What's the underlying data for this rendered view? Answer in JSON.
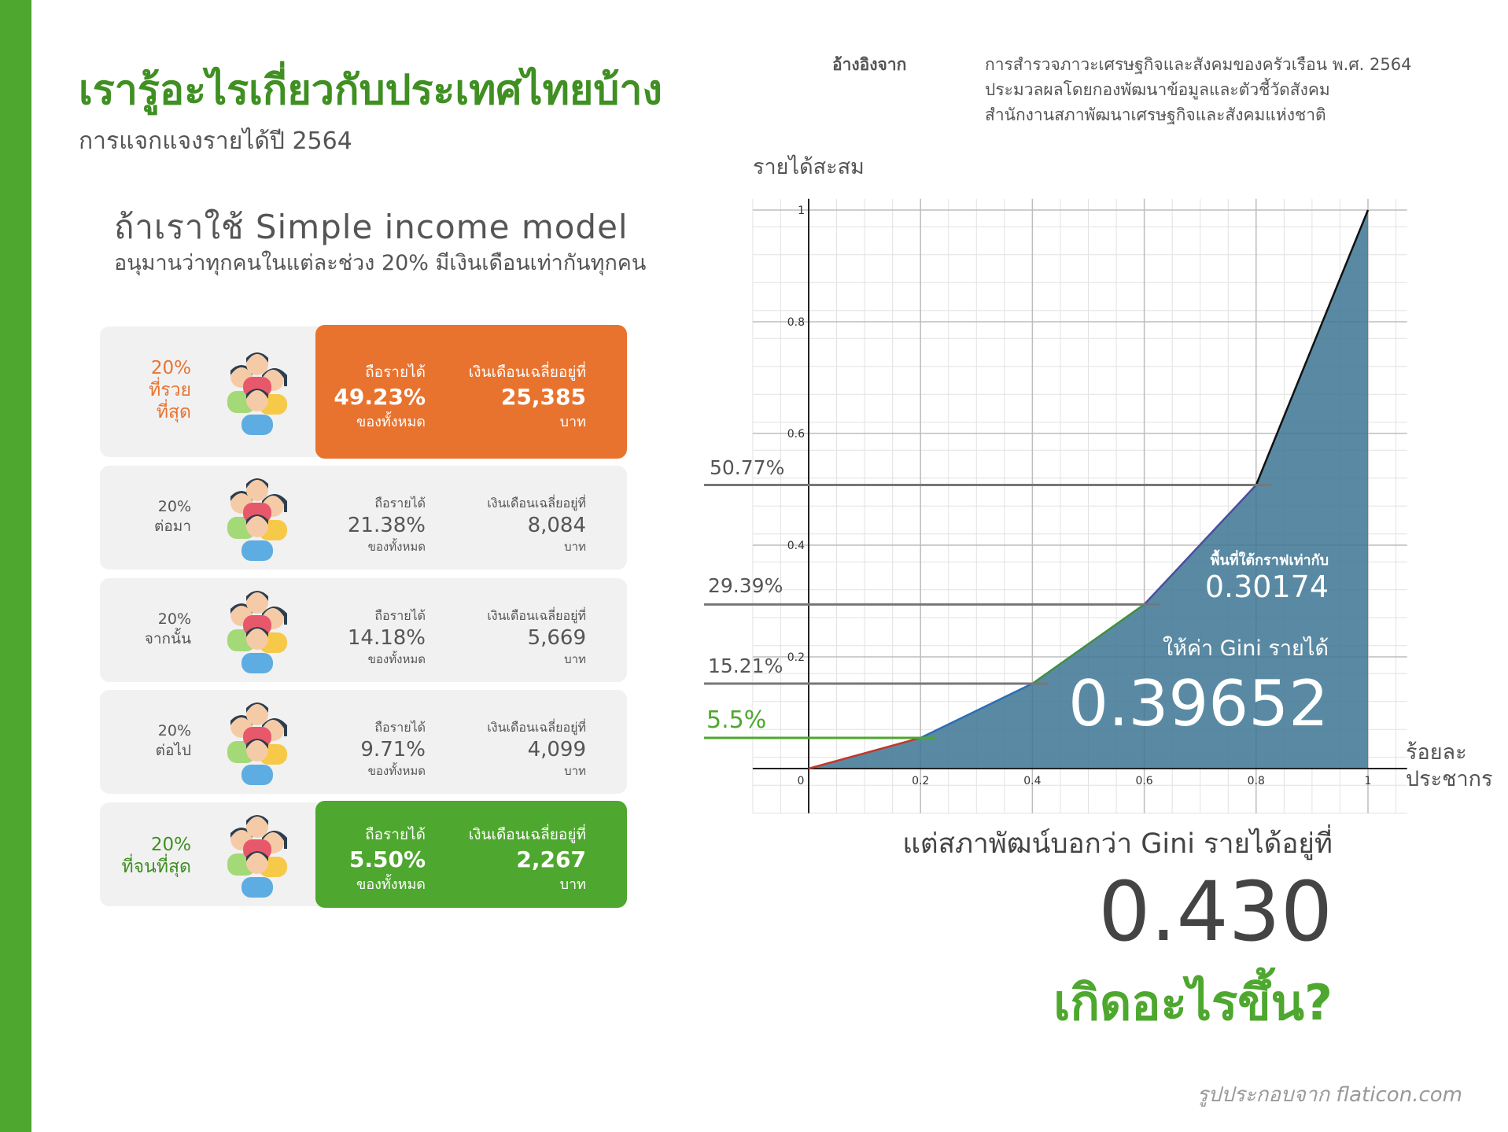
{
  "header": {
    "title": "เรารู้อะไรเกี่ยวกับประเทศไทยบ้าง",
    "subtitle": "การแจกแจงรายได้ปี 2564"
  },
  "reference": {
    "label": "อ้างอิงจาก",
    "lines": [
      "การสำรวจภาวะเศรษฐกิจและสังคมของครัวเรือน พ.ศ. 2564",
      "ประมวลผลโดยกองพัฒนาข้อมูลและตัวชี้วัดสังคม",
      "สำนักงานสภาพัฒนาเศรษฐกิจและสังคมแห่งชาติ"
    ]
  },
  "model": {
    "title": "ถ้าเราใช้ Simple income model",
    "subtitle": "อนุมานว่าทุกคนในแต่ละช่วง 20% มีเงินเดือนเท่ากันทุกคน"
  },
  "income_groups": [
    {
      "pct": "20%",
      "name1": "ที่รวย",
      "name2": "ที่สุด",
      "share_label": "ถือรายได้",
      "share": "49.23%",
      "share_sub": "ของทั้งหมด",
      "salary_label": "เงินเดือนเฉลี่ยอยู่ที่",
      "salary": "25,385",
      "unit": "บาท"
    },
    {
      "pct": "20%",
      "name1": "ต่อมา",
      "name2": "",
      "share_label": "ถือรายได้",
      "share": "21.38%",
      "share_sub": "ของทั้งหมด",
      "salary_label": "เงินเดือนเฉลี่ยอยู่ที่",
      "salary": "8,084",
      "unit": "บาท"
    },
    {
      "pct": "20%",
      "name1": "จากนั้น",
      "name2": "",
      "share_label": "ถือรายได้",
      "share": "14.18%",
      "share_sub": "ของทั้งหมด",
      "salary_label": "เงินเดือนเฉลี่ยอยู่ที่",
      "salary": "5,669",
      "unit": "บาท"
    },
    {
      "pct": "20%",
      "name1": "ต่อไป",
      "name2": "",
      "share_label": "ถือรายได้",
      "share": "9.71%",
      "share_sub": "ของทั้งหมด",
      "salary_label": "เงินเดือนเฉลี่ยอยู่ที่",
      "salary": "4,099",
      "unit": "บาท"
    },
    {
      "pct": "20%",
      "name1": "ที่จนที่สุด",
      "name2": "",
      "share_label": "ถือรายได้",
      "share": "5.50%",
      "share_sub": "ของทั้งหมด",
      "salary_label": "เงินเดือนเฉลี่ยอยู่ที่",
      "salary": "2,267",
      "unit": "บาท"
    }
  ],
  "colors": {
    "brand_green": "#4ea72e",
    "title_green": "#3f8f22",
    "rich_orange": "#e8732f",
    "row_bg": "#f1f1f1",
    "area_fill": "#3d7593",
    "segment_colors": [
      "#c0392b",
      "#2c6fb5",
      "#3f8f40",
      "#4a4f9e",
      "#111111"
    ]
  },
  "chart_data": {
    "type": "area",
    "x": [
      0,
      0.2,
      0.4,
      0.6,
      0.8,
      1
    ],
    "y": [
      0,
      0.055,
      0.1521,
      0.2939,
      0.5077,
      1
    ],
    "xlim": [
      -0.1,
      1.07
    ],
    "ylim": [
      -0.08,
      1.02
    ],
    "xticks": [
      "0",
      "0.2",
      "0.4",
      "0.6",
      "0.8",
      "1"
    ],
    "yticks": [
      "0.2",
      "0.4",
      "0.6",
      "0.8",
      "1"
    ],
    "ylabel": "รายได้สะสม",
    "xlabel_line1": "ร้อยละ",
    "xlabel_line2": "ประชากร",
    "grid": true,
    "annotations": [
      {
        "y": 0.5077,
        "text": "50.77%",
        "x_end": 0.8
      },
      {
        "y": 0.2939,
        "text": "29.39%",
        "x_end": 0.6
      },
      {
        "y": 0.1521,
        "text": "15.21%",
        "x_end": 0.4
      },
      {
        "y": 0.055,
        "text": "5.5%",
        "x_end": 0.2
      }
    ],
    "area_label": "พื้นที่ใต้กราฟเท่ากับ",
    "area_value": "0.30174",
    "gini_label": "ให้ค่า Gini รายได้",
    "gini_value": "0.39652"
  },
  "official": {
    "label": "แต่สภาพัฒน์บอกว่า Gini รายได้อยู่ที่",
    "value": "0.430",
    "question": "เกิดอะไรขึ้น?"
  },
  "credit": "รูปประกอบจาก flaticon.com"
}
